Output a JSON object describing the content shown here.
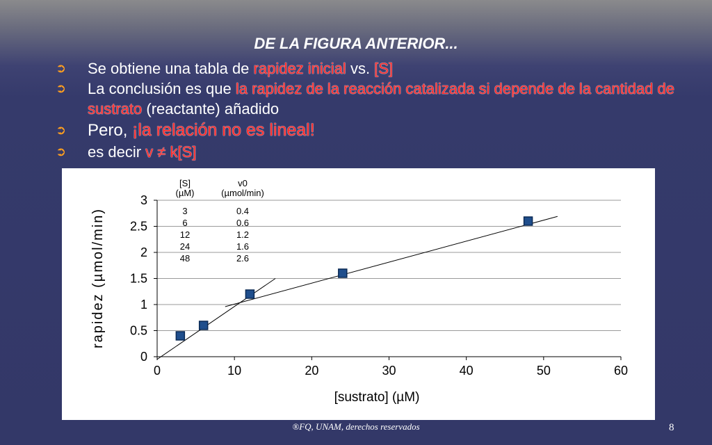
{
  "slide": {
    "title": "DE LA FIGURA ANTERIOR...",
    "bullet_marker": "➲",
    "bullets": [
      {
        "pre": "Se obtiene una tabla de ",
        "hl1": "rapidez inicial",
        "mid": " vs. ",
        "hl2": "[S]"
      },
      {
        "pre": "La conclusión es que ",
        "hl1": "la rapidez de la reacción catalizada si depende de la cantidad de sustrato",
        "post": " (reactante) añadido"
      },
      {
        "pre": "Pero, ",
        "hl1": "¡la relación no es lineal!"
      },
      {
        "pre": "es decir ",
        "hl1": "v ≠ k[S]"
      }
    ],
    "footer": "®FQ, UNAM, derechos reservados",
    "page_number": "8"
  },
  "colors": {
    "highlight": "#ff2a2a",
    "bullet_marker": "#ff9f1f",
    "marker_fill": "#1f4e8c",
    "background": "#333868"
  },
  "chart_data": {
    "type": "scatter",
    "xlabel": "[sustrato] (µM)",
    "ylabel": "rapidez (µmol/min)",
    "xlim": [
      0,
      60
    ],
    "ylim": [
      0,
      3
    ],
    "x_ticks": [
      "0",
      "10",
      "20",
      "30",
      "40",
      "50",
      "60"
    ],
    "y_ticks": [
      "0",
      "0.5",
      "1",
      "1.5",
      "2",
      "2.5",
      "3"
    ],
    "grid": true,
    "points": [
      {
        "x": 3,
        "y": 0.4
      },
      {
        "x": 6,
        "y": 0.6
      },
      {
        "x": 12,
        "y": 1.2
      },
      {
        "x": 24,
        "y": 1.6
      },
      {
        "x": 48,
        "y": 2.6
      }
    ],
    "trend_lines": [
      {
        "from": [
          0,
          -0.05
        ],
        "to": [
          15.3,
          1.5
        ]
      },
      {
        "from": [
          8.8,
          0.96
        ],
        "to": [
          51.8,
          2.69
        ]
      }
    ],
    "table": {
      "headers": [
        [
          "[S]",
          "(µM)"
        ],
        [
          "v0",
          "(µmol/min)"
        ]
      ],
      "rows": [
        [
          "3",
          "0.4"
        ],
        [
          "6",
          "0.6"
        ],
        [
          "12",
          "1.2"
        ],
        [
          "24",
          "1.6"
        ],
        [
          "48",
          "2.6"
        ]
      ]
    }
  }
}
